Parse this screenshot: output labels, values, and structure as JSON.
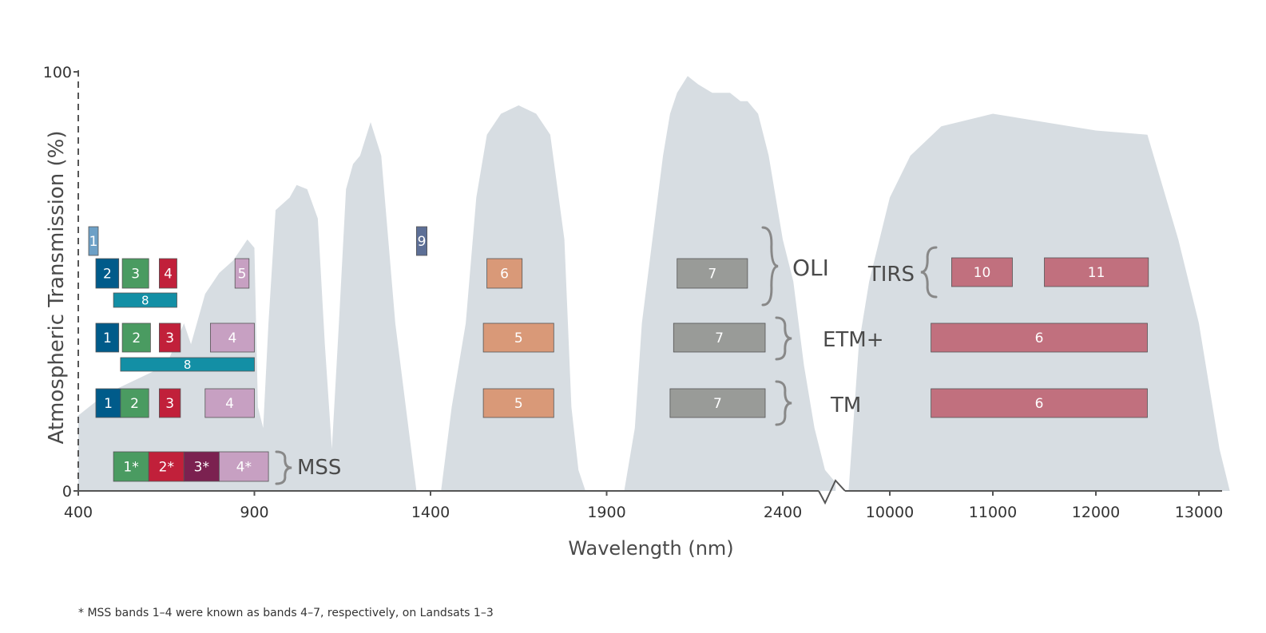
{
  "chart_data": {
    "type": "area",
    "xlabel": "Wavelength (nm)",
    "ylabel": "Atmospheric Transmission (%)",
    "ylim": [
      0,
      100
    ],
    "y_ticks": [
      "0",
      "100"
    ],
    "x_ticks_left": [
      "400",
      "900",
      "1400",
      "1900",
      "2400"
    ],
    "x_ticks_right": [
      "10000",
      "11000",
      "12000",
      "13000"
    ],
    "x_axis_broken": true,
    "colors": {
      "transmission": "#d7dde2",
      "coastal_aerosol": "#6da0c6",
      "blue": "#005b8a",
      "green": "#4a9b61",
      "red": "#c1203a",
      "nir": "#c7a0c2",
      "panchromatic": "#138fa5",
      "cirrus": "#5d6f96",
      "swir1": "#d99978",
      "swir2": "#999b98",
      "thermal": "#c1707e",
      "mss_band3": "#7b2150"
    },
    "sensors": [
      {
        "name": "OLI",
        "bands": [
          {
            "label": "1",
            "min": 433,
            "max": 453,
            "color": "coastal_aerosol"
          },
          {
            "label": "2",
            "min": 450,
            "max": 515,
            "color": "blue"
          },
          {
            "label": "3",
            "min": 525,
            "max": 600,
            "color": "green"
          },
          {
            "label": "4",
            "min": 630,
            "max": 680,
            "color": "red"
          },
          {
            "label": "5",
            "min": 845,
            "max": 885,
            "color": "nir"
          },
          {
            "label": "6",
            "min": 1560,
            "max": 1660,
            "color": "swir1"
          },
          {
            "label": "7",
            "min": 2100,
            "max": 2300,
            "color": "swir2"
          },
          {
            "label": "8",
            "min": 500,
            "max": 680,
            "color": "panchromatic"
          },
          {
            "label": "9",
            "min": 1360,
            "max": 1390,
            "color": "cirrus"
          }
        ]
      },
      {
        "name": "TIRS",
        "bands": [
          {
            "label": "10",
            "min": 10600,
            "max": 11190,
            "color": "thermal"
          },
          {
            "label": "11",
            "min": 11500,
            "max": 12510,
            "color": "thermal"
          }
        ]
      },
      {
        "name": "ETM+",
        "bands": [
          {
            "label": "1",
            "min": 450,
            "max": 515,
            "color": "blue"
          },
          {
            "label": "2",
            "min": 525,
            "max": 605,
            "color": "green"
          },
          {
            "label": "3",
            "min": 630,
            "max": 690,
            "color": "red"
          },
          {
            "label": "4",
            "min": 775,
            "max": 900,
            "color": "nir"
          },
          {
            "label": "5",
            "min": 1550,
            "max": 1750,
            "color": "swir1"
          },
          {
            "label": "7",
            "min": 2090,
            "max": 2350,
            "color": "swir2"
          },
          {
            "label": "8",
            "min": 520,
            "max": 900,
            "color": "panchromatic"
          },
          {
            "label": "6",
            "min": 10400,
            "max": 12500,
            "color": "thermal"
          }
        ]
      },
      {
        "name": "TM",
        "bands": [
          {
            "label": "1",
            "min": 450,
            "max": 520,
            "color": "blue"
          },
          {
            "label": "2",
            "min": 520,
            "max": 600,
            "color": "green"
          },
          {
            "label": "3",
            "min": 630,
            "max": 690,
            "color": "red"
          },
          {
            "label": "4",
            "min": 760,
            "max": 900,
            "color": "nir"
          },
          {
            "label": "5",
            "min": 1550,
            "max": 1750,
            "color": "swir1"
          },
          {
            "label": "7",
            "min": 2080,
            "max": 2350,
            "color": "swir2"
          },
          {
            "label": "6",
            "min": 10400,
            "max": 12500,
            "color": "thermal"
          }
        ]
      },
      {
        "name": "MSS",
        "bands": [
          {
            "label": "1*",
            "min": 500,
            "max": 600,
            "color": "green"
          },
          {
            "label": "2*",
            "min": 600,
            "max": 700,
            "color": "red"
          },
          {
            "label": "3*",
            "min": 700,
            "max": 800,
            "color": "mss_band3"
          },
          {
            "label": "4*",
            "min": 800,
            "max": 940,
            "color": "nir"
          }
        ]
      }
    ],
    "transmission_curve": [
      [
        400,
        18
      ],
      [
        460,
        22
      ],
      [
        500,
        24
      ],
      [
        550,
        26
      ],
      [
        600,
        28
      ],
      [
        650,
        30
      ],
      [
        700,
        40
      ],
      [
        720,
        35
      ],
      [
        760,
        47
      ],
      [
        800,
        52
      ],
      [
        840,
        55
      ],
      [
        880,
        60
      ],
      [
        900,
        58
      ],
      [
        910,
        20
      ],
      [
        925,
        15
      ],
      [
        940,
        40
      ],
      [
        960,
        67
      ],
      [
        1000,
        70
      ],
      [
        1020,
        73
      ],
      [
        1050,
        72
      ],
      [
        1080,
        65
      ],
      [
        1100,
        35
      ],
      [
        1120,
        10
      ],
      [
        1140,
        40
      ],
      [
        1160,
        72
      ],
      [
        1180,
        78
      ],
      [
        1200,
        80
      ],
      [
        1230,
        88
      ],
      [
        1260,
        80
      ],
      [
        1280,
        60
      ],
      [
        1300,
        40
      ],
      [
        1330,
        20
      ],
      [
        1360,
        0
      ],
      [
        1400,
        0
      ],
      [
        1430,
        0
      ],
      [
        1460,
        20
      ],
      [
        1500,
        40
      ],
      [
        1530,
        70
      ],
      [
        1560,
        85
      ],
      [
        1600,
        90
      ],
      [
        1650,
        92
      ],
      [
        1700,
        90
      ],
      [
        1740,
        85
      ],
      [
        1780,
        60
      ],
      [
        1800,
        20
      ],
      [
        1820,
        5
      ],
      [
        1840,
        0
      ],
      [
        1900,
        0
      ],
      [
        1950,
        0
      ],
      [
        1980,
        15
      ],
      [
        2000,
        40
      ],
      [
        2030,
        60
      ],
      [
        2060,
        80
      ],
      [
        2080,
        90
      ],
      [
        2100,
        95
      ],
      [
        2130,
        99
      ],
      [
        2160,
        97
      ],
      [
        2200,
        95
      ],
      [
        2250,
        95
      ],
      [
        2280,
        93
      ],
      [
        2300,
        93
      ],
      [
        2330,
        90
      ],
      [
        2360,
        80
      ],
      [
        2400,
        60
      ],
      [
        2430,
        50
      ],
      [
        2460,
        30
      ],
      [
        2490,
        15
      ],
      [
        2520,
        5
      ],
      [
        2550,
        2
      ],
      [
        9600,
        0
      ],
      [
        9700,
        35
      ],
      [
        9800,
        50
      ],
      [
        9900,
        60
      ],
      [
        10000,
        70
      ],
      [
        10200,
        80
      ],
      [
        10500,
        87
      ],
      [
        11000,
        90
      ],
      [
        11500,
        88
      ],
      [
        12000,
        86
      ],
      [
        12500,
        85
      ],
      [
        12800,
        60
      ],
      [
        13000,
        40
      ],
      [
        13200,
        10
      ],
      [
        13300,
        0
      ]
    ],
    "annotations": [
      "* MSS bands 1–4 were known as bands 4–7, respectively, on Landsats 1–3"
    ]
  }
}
